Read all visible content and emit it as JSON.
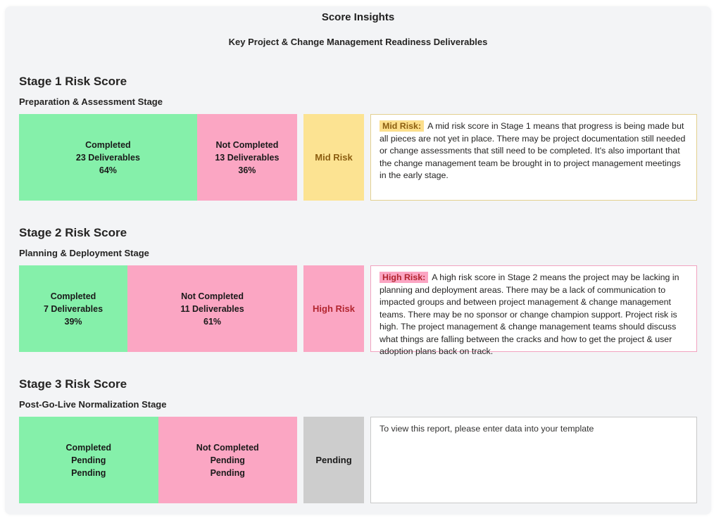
{
  "report": {
    "title": "Score Insights",
    "subtitle": "Key Project & Change Management Readiness Deliverables"
  },
  "colors": {
    "completed_fill": "#85f0aa",
    "not_completed_fill": "#fba6c3",
    "mid_risk_fill": "#fce392",
    "mid_risk_text": "#8c5e10",
    "high_risk_fill": "#fba6c3",
    "high_risk_text": "#b2252f",
    "pending_fill": "#cdcdcd",
    "pending_text": "#1a1a1a",
    "card_background": "#f3f4f6"
  },
  "stages": [
    {
      "heading": "Stage 1 Risk Score",
      "stage_name": "Preparation & Assessment Stage",
      "completed": {
        "pct": 64,
        "lines": [
          "Completed",
          "23 Deliverables",
          "64%"
        ]
      },
      "not_completed": {
        "pct": 36,
        "lines": [
          "Not Completed",
          "13 Deliverables",
          "36%"
        ]
      },
      "risk_badge": "Mid Risk",
      "note": {
        "label": "Mid Risk:",
        "text": "A mid risk score in Stage 1 means that progress is being made but all pieces are not yet in place. There may be project documentation still needed or change assessments that still need to be completed. It's also important that the change management team be brought in to project management meetings in the early stage."
      }
    },
    {
      "heading": "Stage 2 Risk Score",
      "stage_name": "Planning & Deployment Stage",
      "completed": {
        "pct": 39,
        "lines": [
          "Completed",
          "7 Deliverables",
          "39%"
        ]
      },
      "not_completed": {
        "pct": 61,
        "lines": [
          "Not Completed",
          "11 Deliverables",
          "61%"
        ]
      },
      "risk_badge": "High Risk",
      "note": {
        "label": "High Risk:",
        "text": "A high risk score in Stage 2 means the project may be lacking in planning and deployment areas. There may be a lack of communication to impacted groups and between project management & change management teams. There may be no sponsor or change champion support. Project risk is high. The project management & change management teams should discuss what things are falling between the cracks and how to get the project & user adoption plans back on track."
      }
    },
    {
      "heading": "Stage 3 Risk Score",
      "stage_name": "Post-Go-Live Normalization Stage",
      "completed": {
        "pct": 50,
        "lines": [
          "Completed",
          "Pending",
          "Pending"
        ]
      },
      "not_completed": {
        "pct": 50,
        "lines": [
          "Not Completed",
          "Pending",
          "Pending"
        ]
      },
      "risk_badge": "Pending",
      "note": {
        "label": "",
        "text": "To view this report, please enter data into your template"
      }
    }
  ],
  "chart_data": {
    "type": "bar",
    "subtype": "horizontal-stacked-100pct",
    "title": "Score Insights",
    "subtitle": "Key Project & Change Management Readiness Deliverables",
    "categories": [
      "Stage 1: Preparation & Assessment Stage",
      "Stage 2: Planning & Deployment Stage",
      "Stage 3: Post-Go-Live Normalization Stage"
    ],
    "series": [
      {
        "name": "Completed",
        "color": "#85f0aa",
        "pct_values": [
          64,
          39,
          null
        ],
        "deliverables": [
          23,
          7,
          null
        ]
      },
      {
        "name": "Not Completed",
        "color": "#fba6c3",
        "pct_values": [
          36,
          61,
          null
        ],
        "deliverables": [
          13,
          11,
          null
        ]
      }
    ],
    "risk_scores": [
      "Mid Risk",
      "High Risk",
      "Pending"
    ],
    "xlim": [
      0,
      100
    ],
    "legend": "none",
    "grid": false,
    "data_labels": true
  }
}
